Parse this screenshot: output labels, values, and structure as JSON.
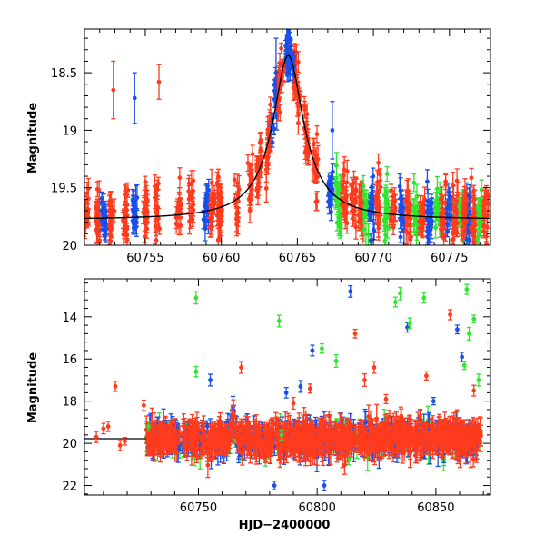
{
  "chart_data": [
    {
      "type": "scatter",
      "panel": "top",
      "ylabel": "Magnitude",
      "xlabel": "",
      "xlim": [
        60751.0,
        60777.7
      ],
      "ylim": [
        20.0,
        18.12
      ],
      "y_inverted": true,
      "x_ticks": [
        60755,
        60760,
        60765,
        60770,
        60775
      ],
      "y_ticks": [
        18.5,
        19,
        19.5,
        20
      ],
      "y_tick_labels": [
        "18.5",
        "19",
        "19.5",
        "20"
      ],
      "colors": {
        "red": "#ff3b1e",
        "blue": "#1a4fe8",
        "green": "#2ee62e",
        "model": "#000000"
      },
      "model_curve": {
        "description": "microlensing-like peak",
        "baseline": 19.78,
        "peak_mag": 18.35,
        "t0": 60764.4,
        "tE": 2.2
      },
      "series": [
        {
          "color": "red",
          "x_range": [
            60751.0,
            60777.7
          ]
        },
        {
          "color": "blue",
          "x_range": [
            60751.0,
            60777.7
          ]
        },
        {
          "color": "green",
          "x_range": [
            60767.5,
            60777.7
          ]
        }
      ],
      "highlighted_points": [
        {
          "x": 60752.9,
          "y": 18.65,
          "err": 0.25,
          "series": "red"
        },
        {
          "x": 60755.9,
          "y": 18.58,
          "err": 0.15,
          "series": "red"
        },
        {
          "x": 60754.3,
          "y": 18.72,
          "err": 0.22,
          "series": "blue"
        },
        {
          "x": 60763.6,
          "y": 18.5,
          "err": 0.3,
          "series": "blue"
        },
        {
          "x": 60764.4,
          "y": 18.28,
          "err": 0.1,
          "series": "blue"
        },
        {
          "x": 60767.3,
          "y": 19.0,
          "err": 0.25,
          "series": "blue"
        }
      ]
    },
    {
      "type": "scatter",
      "panel": "bottom",
      "ylabel": "Magnitude",
      "xlabel": "HJD−2400000",
      "xlim": [
        60702,
        60873
      ],
      "ylim": [
        22.45,
        12.2
      ],
      "y_inverted": true,
      "x_ticks": [
        60750,
        60800,
        60850
      ],
      "y_ticks": [
        14,
        16,
        18,
        20,
        22
      ],
      "y_tick_labels": [
        "14",
        "16",
        "18",
        "20",
        "22"
      ],
      "colors": {
        "red": "#ff3b1e",
        "blue": "#1a4fe8",
        "green": "#2ee62e",
        "model": "#000000"
      },
      "baseline": 19.78,
      "outliers": [
        {
          "x": 60707,
          "y": 19.7,
          "c": "red"
        },
        {
          "x": 60710,
          "y": 19.3,
          "c": "red"
        },
        {
          "x": 60712,
          "y": 19.2,
          "c": "red"
        },
        {
          "x": 60715,
          "y": 17.3,
          "c": "red"
        },
        {
          "x": 60717,
          "y": 20.1,
          "c": "red"
        },
        {
          "x": 60719,
          "y": 19.9,
          "c": "red"
        },
        {
          "x": 60727,
          "y": 18.2,
          "c": "red"
        },
        {
          "x": 60729,
          "y": 19.2,
          "c": "green"
        },
        {
          "x": 60749,
          "y": 13.1,
          "c": "green"
        },
        {
          "x": 60749,
          "y": 16.6,
          "c": "green"
        },
        {
          "x": 60755,
          "y": 17.0,
          "c": "blue"
        },
        {
          "x": 60768,
          "y": 16.4,
          "c": "red"
        },
        {
          "x": 60784,
          "y": 14.2,
          "c": "green"
        },
        {
          "x": 60785,
          "y": 19.6,
          "c": "green"
        },
        {
          "x": 60787,
          "y": 17.6,
          "c": "blue"
        },
        {
          "x": 60790,
          "y": 18.1,
          "c": "red"
        },
        {
          "x": 60793,
          "y": 17.3,
          "c": "blue"
        },
        {
          "x": 60797,
          "y": 17.4,
          "c": "red"
        },
        {
          "x": 60798,
          "y": 15.6,
          "c": "blue"
        },
        {
          "x": 60802,
          "y": 15.5,
          "c": "green"
        },
        {
          "x": 60805,
          "y": 18.7,
          "c": "red"
        },
        {
          "x": 60808,
          "y": 16.1,
          "c": "green"
        },
        {
          "x": 60814,
          "y": 12.8,
          "c": "blue"
        },
        {
          "x": 60816,
          "y": 14.8,
          "c": "red"
        },
        {
          "x": 60820,
          "y": 17.0,
          "c": "red"
        },
        {
          "x": 60824,
          "y": 16.4,
          "c": "red"
        },
        {
          "x": 60829,
          "y": 17.9,
          "c": "red"
        },
        {
          "x": 60833,
          "y": 13.3,
          "c": "green"
        },
        {
          "x": 60835,
          "y": 12.9,
          "c": "green"
        },
        {
          "x": 60838,
          "y": 14.5,
          "c": "blue"
        },
        {
          "x": 60839,
          "y": 14.3,
          "c": "green"
        },
        {
          "x": 60845,
          "y": 13.1,
          "c": "green"
        },
        {
          "x": 60846,
          "y": 16.8,
          "c": "red"
        },
        {
          "x": 60849,
          "y": 18.0,
          "c": "blue"
        },
        {
          "x": 60856,
          "y": 13.9,
          "c": "red"
        },
        {
          "x": 60859,
          "y": 14.6,
          "c": "blue"
        },
        {
          "x": 60861,
          "y": 15.9,
          "c": "blue"
        },
        {
          "x": 60862,
          "y": 16.3,
          "c": "green"
        },
        {
          "x": 60863,
          "y": 12.7,
          "c": "green"
        },
        {
          "x": 60864,
          "y": 14.8,
          "c": "green"
        },
        {
          "x": 60866,
          "y": 14.1,
          "c": "green"
        },
        {
          "x": 60866,
          "y": 17.5,
          "c": "red"
        },
        {
          "x": 60868,
          "y": 17.0,
          "c": "green"
        },
        {
          "x": 60782,
          "y": 22.0,
          "c": "blue"
        },
        {
          "x": 60803,
          "y": 22.0,
          "c": "blue"
        }
      ]
    }
  ]
}
